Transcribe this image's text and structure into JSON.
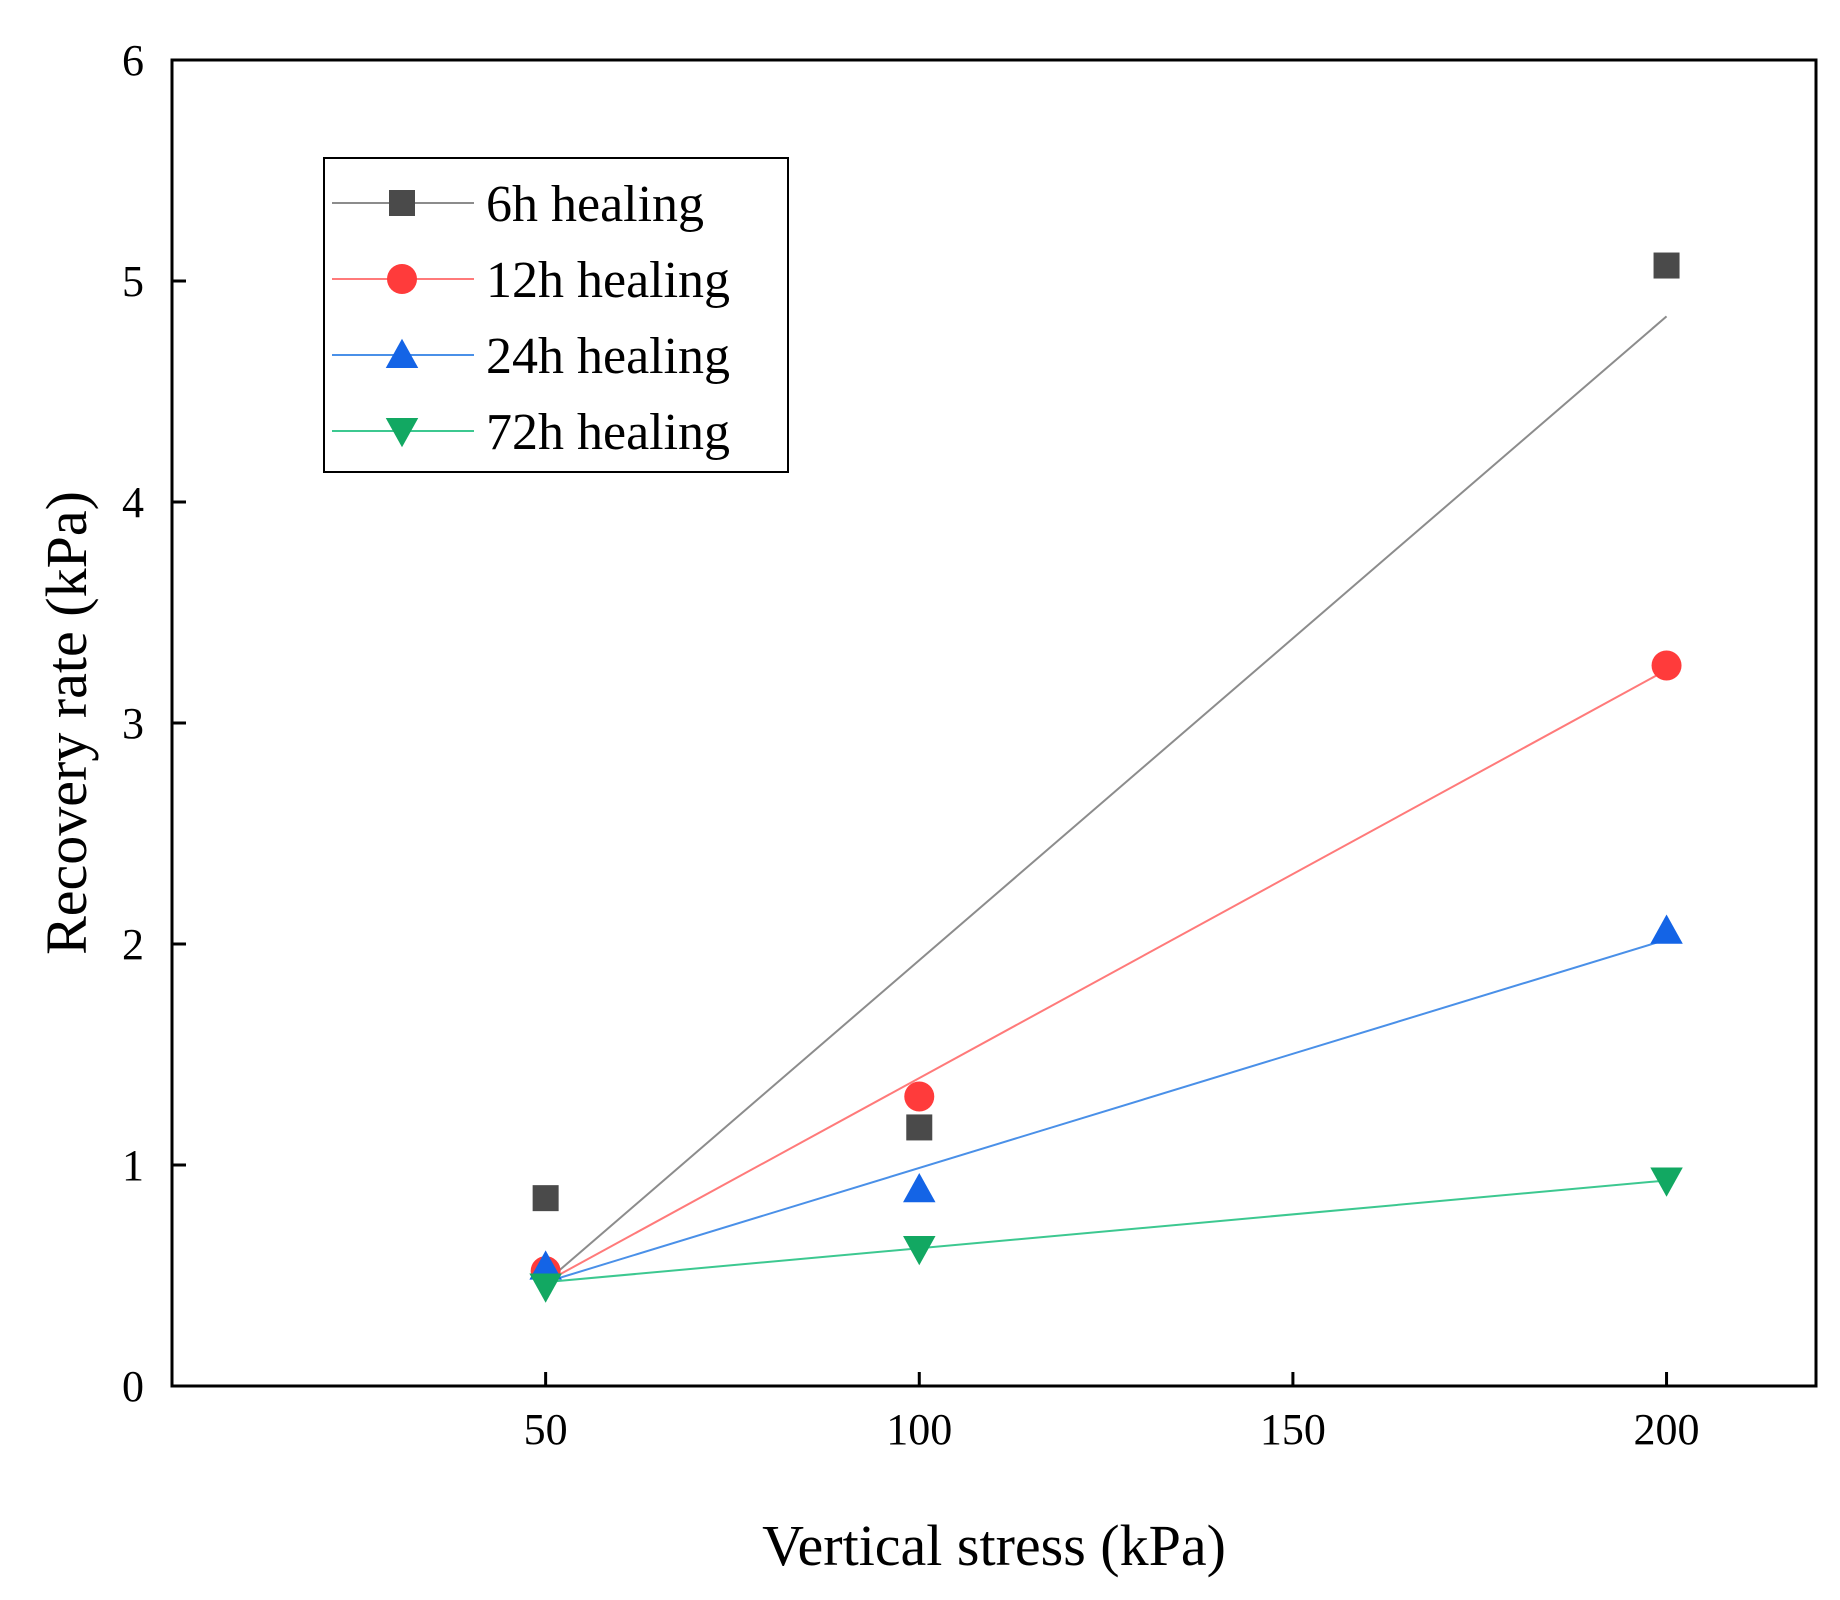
{
  "chart_data": {
    "type": "scatter",
    "xlabel": "Vertical stress (kPa)",
    "ylabel": "Recovery rate (kPa)",
    "xlim": [
      0,
      220
    ],
    "ylim": [
      0,
      6
    ],
    "xticks": [
      50,
      100,
      150,
      200
    ],
    "yticks": [
      0,
      1,
      2,
      3,
      4,
      5,
      6
    ],
    "legend_position": "top-left",
    "series": [
      {
        "name": "6h healing",
        "marker": "square",
        "marker_color": "#4a4a4a",
        "line_color": "#8c8c8c",
        "x": [
          50,
          100,
          200
        ],
        "y": [
          0.85,
          1.17,
          5.07
        ],
        "fit": [
          [
            50,
            0.47
          ],
          [
            200,
            4.84
          ]
        ]
      },
      {
        "name": "12h healing",
        "marker": "circle",
        "marker_color": "#ff3b3b",
        "line_color": "#ff7a7a",
        "x": [
          50,
          100,
          200
        ],
        "y": [
          0.52,
          1.31,
          3.26
        ],
        "fit": [
          [
            50,
            0.47
          ],
          [
            200,
            3.24
          ]
        ]
      },
      {
        "name": "24h healing",
        "marker": "triangle-up",
        "marker_color": "#1464e6",
        "line_color": "#4a90e8",
        "x": [
          50,
          100,
          200
        ],
        "y": [
          0.54,
          0.89,
          2.06
        ],
        "fit": [
          [
            50,
            0.47
          ],
          [
            200,
            2.02
          ]
        ]
      },
      {
        "name": "72h healing",
        "marker": "triangle-down",
        "marker_color": "#12a862",
        "line_color": "#3cc890",
        "x": [
          50,
          100,
          200
        ],
        "y": [
          0.45,
          0.62,
          0.93
        ],
        "fit": [
          [
            50,
            0.47
          ],
          [
            200,
            0.93
          ]
        ]
      }
    ]
  }
}
